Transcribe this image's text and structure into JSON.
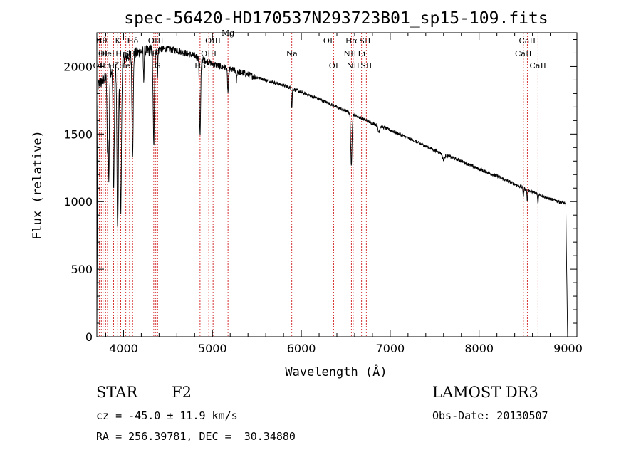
{
  "chart_data": {
    "type": "line",
    "title": "spec-56420-HD170537N293723B01_sp15-109.fits",
    "xlabel": "Wavelength (Å)",
    "ylabel": "Flux (relative)",
    "xlim": [
      3700,
      9100
    ],
    "ylim": [
      0,
      2250
    ],
    "xticks": [
      4000,
      5000,
      6000,
      7000,
      8000,
      9000
    ],
    "yticks": [
      0,
      500,
      1000,
      1500,
      2000
    ],
    "grid": false,
    "continuum": {
      "x": [
        3700,
        3800,
        3900,
        4000,
        4100,
        4200,
        4300,
        4400,
        4500,
        4600,
        4700,
        4800,
        4900,
        5000,
        5200,
        5400,
        5600,
        5800,
        6000,
        6200,
        6400,
        6600,
        6800,
        7000,
        7200,
        7400,
        7600,
        7800,
        8000,
        8200,
        8400,
        8600,
        8800,
        8950,
        8990
      ],
      "y": [
        1850,
        1920,
        2000,
        2060,
        2090,
        2110,
        2120,
        2130,
        2130,
        2120,
        2100,
        2080,
        2050,
        2020,
        1980,
        1940,
        1900,
        1860,
        1810,
        1760,
        1700,
        1640,
        1580,
        1530,
        1470,
        1410,
        1350,
        1300,
        1240,
        1190,
        1130,
        1070,
        1020,
        990,
        970
      ]
    },
    "absorption_features": [
      {
        "wavelength": 3820,
        "depth": 0.3,
        "width": 6
      },
      {
        "wavelength": 3835,
        "depth": 0.4,
        "width": 5
      },
      {
        "wavelength": 3889,
        "depth": 0.45,
        "width": 7
      },
      {
        "wavelength": 3934,
        "depth": 0.62,
        "width": 8
      },
      {
        "wavelength": 3969,
        "depth": 0.55,
        "width": 8
      },
      {
        "wavelength": 4102,
        "depth": 0.35,
        "width": 7
      },
      {
        "wavelength": 4227,
        "depth": 0.1,
        "width": 4
      },
      {
        "wavelength": 4340,
        "depth": 0.34,
        "width": 7
      },
      {
        "wavelength": 4383,
        "depth": 0.08,
        "width": 4
      },
      {
        "wavelength": 4861,
        "depth": 0.28,
        "width": 7
      },
      {
        "wavelength": 5175,
        "depth": 0.09,
        "width": 6
      },
      {
        "wavelength": 5270,
        "depth": 0.04,
        "width": 4
      },
      {
        "wavelength": 5893,
        "depth": 0.08,
        "width": 4
      },
      {
        "wavelength": 6563,
        "depth": 0.24,
        "width": 7
      },
      {
        "wavelength": 6870,
        "depth": 0.03,
        "width": 10
      },
      {
        "wavelength": 7600,
        "depth": 0.03,
        "width": 12
      },
      {
        "wavelength": 8498,
        "depth": 0.06,
        "width": 4
      },
      {
        "wavelength": 8542,
        "depth": 0.08,
        "width": 4
      },
      {
        "wavelength": 8662,
        "depth": 0.07,
        "width": 4
      }
    ],
    "line_markers": [
      {
        "wavelength": 3727,
        "label": "OII",
        "row": 3
      },
      {
        "wavelength": 3750,
        "label": "Hθ",
        "row": 1
      },
      {
        "wavelength": 3770,
        "label": "OI",
        "row": 2
      },
      {
        "wavelength": 3798,
        "label": "Hη",
        "row": 3
      },
      {
        "wavelength": 3820,
        "label": "HeI",
        "row": 2
      },
      {
        "wavelength": 3889,
        "label": "Hζ",
        "row": 3
      },
      {
        "wavelength": 3934,
        "label": "K",
        "row": 1
      },
      {
        "wavelength": 3969,
        "label": "Hε",
        "row": 2
      },
      {
        "wavelength": 4026,
        "label": "HeI",
        "row": 3
      },
      {
        "wavelength": 4068,
        "label": "SII",
        "row": 2
      },
      {
        "wavelength": 4102,
        "label": "Hδ",
        "row": 1
      },
      {
        "wavelength": 4340,
        "label": "Hγ",
        "row": 2
      },
      {
        "wavelength": 4363,
        "label": "OIII",
        "row": 1
      },
      {
        "wavelength": 4383,
        "label": "G",
        "row": 3
      },
      {
        "wavelength": 4861,
        "label": "Hβ",
        "row": 3
      },
      {
        "wavelength": 4959,
        "label": "OIII",
        "row": 2
      },
      {
        "wavelength": 5007,
        "label": "OIII",
        "row": 1
      },
      {
        "wavelength": 5175,
        "label": "Mg",
        "row": 0
      },
      {
        "wavelength": 5893,
        "label": "Na",
        "row": 2
      },
      {
        "wavelength": 6300,
        "label": "OI",
        "row": 1
      },
      {
        "wavelength": 6363,
        "label": "OI",
        "row": 3
      },
      {
        "wavelength": 6548,
        "label": "NII",
        "row": 2
      },
      {
        "wavelength": 6563,
        "label": "Hα",
        "row": 1
      },
      {
        "wavelength": 6583,
        "label": "NII",
        "row": 3
      },
      {
        "wavelength": 6678,
        "label": "Li",
        "row": 2
      },
      {
        "wavelength": 6716,
        "label": "SII",
        "row": 1
      },
      {
        "wavelength": 6731,
        "label": "SII",
        "row": 3
      },
      {
        "wavelength": 8498,
        "label": "CaII",
        "row": 2
      },
      {
        "wavelength": 8542,
        "label": "CaII",
        "row": 1
      },
      {
        "wavelength": 8662,
        "label": "CaII",
        "row": 3
      }
    ]
  },
  "info": {
    "object_class": "STAR",
    "subclass": "F2",
    "survey": "LAMOST DR3",
    "redshift": "cz = -45.0 ± 11.9 km/s",
    "obs_date": "Obs-Date: 20130507",
    "coords": "RA = 256.39781, DEC =  30.34880"
  },
  "colors": {
    "spectrum": "#000000",
    "markers": "#cc0000",
    "axes": "#000000"
  }
}
